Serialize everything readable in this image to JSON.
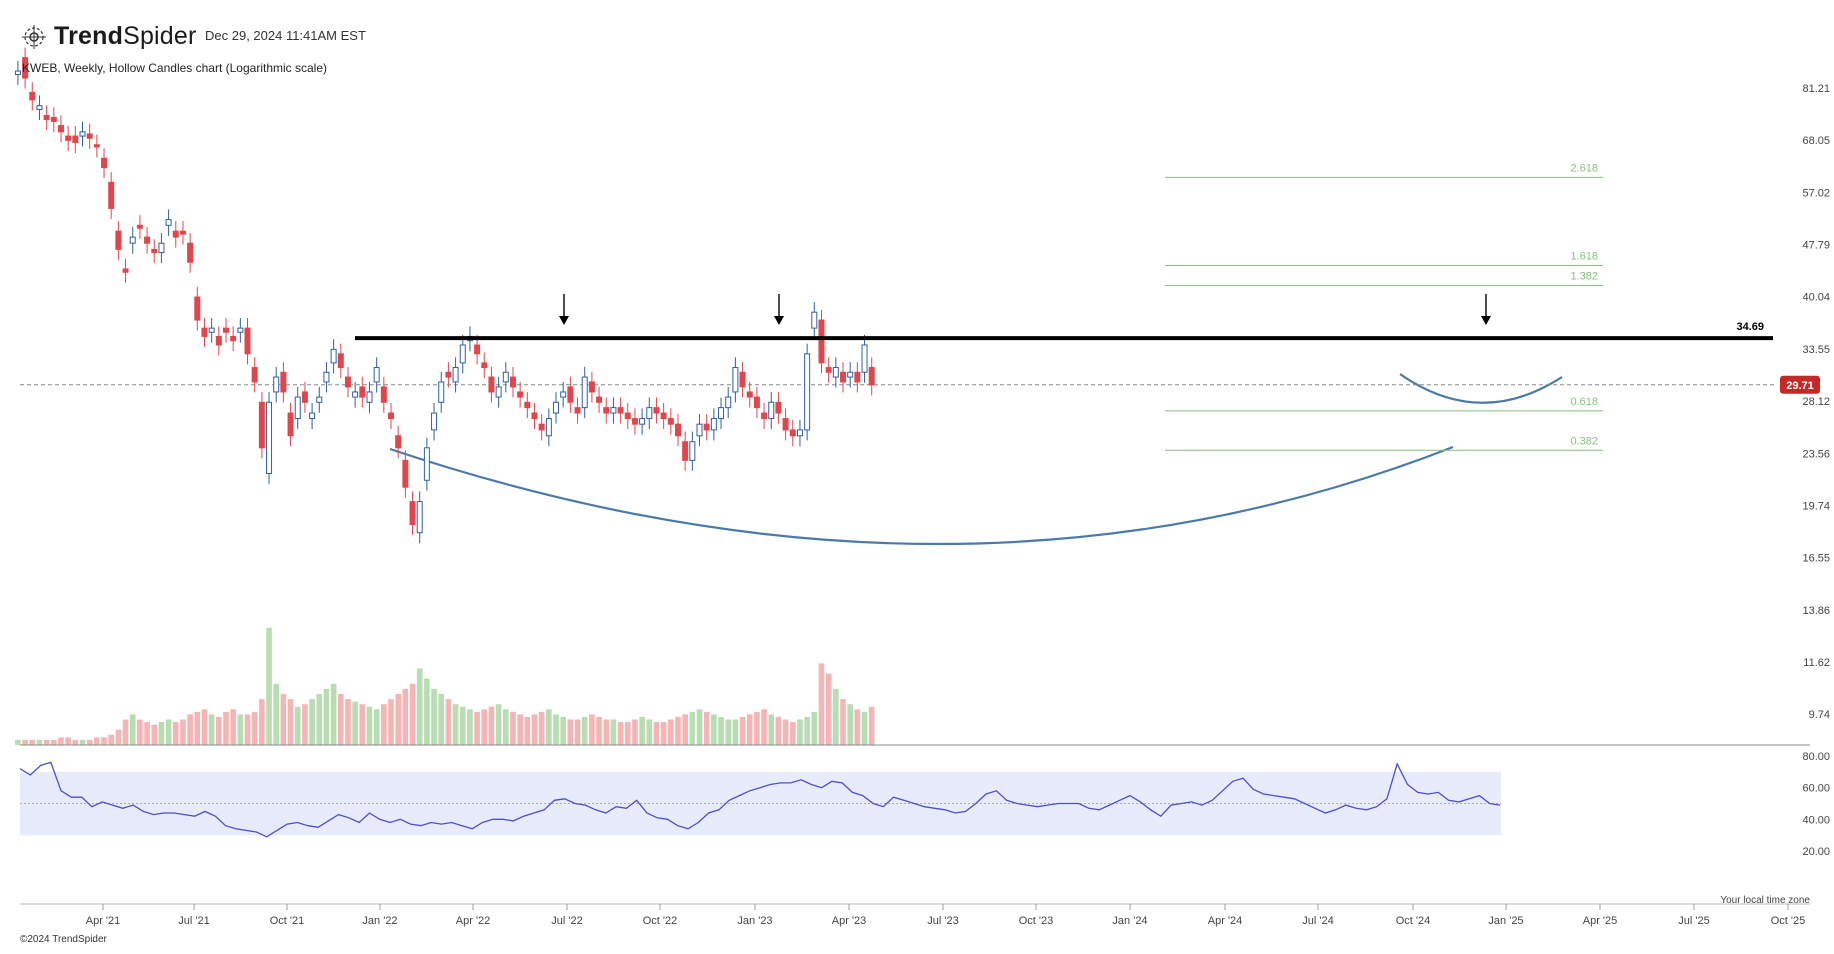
{
  "header": {
    "brand_prefix": "Trend",
    "brand_suffix": "Spider",
    "datetime": "Dec 29, 2024 11:41AM EST",
    "subtitle": "KWEB, Weekly, Hollow Candles chart (Logarithmic scale)",
    "copyright": "©2024 TrendSpider",
    "timezone_note": "Your local time zone"
  },
  "colors": {
    "up": "#2f5fa6",
    "down": "#e0474c",
    "vol_up": "#b9ddb2",
    "vol_down": "#f6b5b5",
    "fib": "#86c17e",
    "arc": "#4a7aaa",
    "rsi_line": "#4b4fd0",
    "rsi_band": "#e8ebfb",
    "price_tag": "#c62828"
  },
  "chart_data": [
    {
      "type": "candlestick",
      "title": "KWEB, Weekly, Hollow Candles chart (Logarithmic scale)",
      "yscale": "log",
      "y_ticks": [
        "81.21",
        "68.05",
        "57.02",
        "47.79",
        "40.04",
        "33.55",
        "28.12",
        "23.56",
        "19.74",
        "16.55",
        "13.86",
        "11.62",
        "9.74"
      ],
      "x_ticks": [
        "Apr '21",
        "Jul '21",
        "Oct '21",
        "Jan '22",
        "Apr '22",
        "Jul '22",
        "Oct '22",
        "Jan '23",
        "Apr '23",
        "Jul '23",
        "Oct '23",
        "Jan '24",
        "Apr '24",
        "Jul '24",
        "Oct '24",
        "Jan '25",
        "Apr '25",
        "Jul '25",
        "Oct '25"
      ],
      "x_start": "2021-01-08",
      "series_close": [
        [
          85.0,
          86.0
        ],
        [
          90.0,
          84.0
        ],
        [
          80.0,
          78.0
        ],
        [
          75.5,
          76.5
        ],
        [
          74.0,
          73.0
        ],
        [
          73.5,
          72.5
        ],
        [
          71.5,
          70.0
        ],
        [
          69.0,
          68.0
        ],
        [
          69.0,
          67.5
        ],
        [
          69.0,
          70.0
        ],
        [
          69.5,
          68.5
        ],
        [
          67.0,
          66.5
        ],
        [
          64.0,
          62.0
        ],
        [
          59.0,
          54.0
        ],
        [
          50.0,
          47.0
        ],
        [
          44.0,
          43.5
        ],
        [
          48.0,
          49.0
        ],
        [
          51.0,
          50.5
        ],
        [
          49.0,
          48.0
        ],
        [
          47.0,
          46.5
        ],
        [
          46.5,
          48.0
        ],
        [
          51.0,
          52.0
        ],
        [
          50.0,
          49.0
        ],
        [
          50.0,
          49.5
        ],
        [
          48.0,
          45.0
        ],
        [
          40.0,
          37.0
        ],
        [
          36.0,
          35.0
        ],
        [
          35.5,
          36.0
        ],
        [
          35.0,
          34.0
        ],
        [
          36.0,
          35.5
        ],
        [
          35.0,
          34.5
        ],
        [
          35.5,
          36.0
        ],
        [
          36.0,
          33.0
        ],
        [
          31.5,
          30.0
        ],
        [
          28.0,
          24.0
        ],
        [
          22.0,
          28.0
        ],
        [
          29.0,
          30.5
        ],
        [
          31.0,
          29.0
        ],
        [
          27.0,
          25.0
        ],
        [
          26.5,
          28.5
        ],
        [
          29.0,
          28.0
        ],
        [
          26.5,
          27.0
        ],
        [
          28.0,
          28.5
        ],
        [
          30.0,
          31.0
        ],
        [
          32.0,
          33.5
        ],
        [
          33.0,
          31.5
        ],
        [
          30.5,
          29.5
        ],
        [
          28.5,
          29.0
        ],
        [
          29.5,
          28.5
        ],
        [
          28.0,
          29.0
        ],
        [
          30.0,
          31.5
        ],
        [
          29.5,
          28.0
        ],
        [
          27.0,
          26.5
        ],
        [
          25.0,
          24.0
        ],
        [
          23.0,
          21.0
        ],
        [
          20.0,
          18.5
        ],
        [
          18.0,
          20.0
        ],
        [
          21.5,
          24.0
        ],
        [
          25.5,
          27.0
        ],
        [
          28.0,
          30.0
        ],
        [
          31.0,
          30.5
        ],
        [
          30.0,
          31.5
        ],
        [
          32.0,
          34.0
        ],
        [
          34.5,
          35.0
        ],
        [
          34.0,
          33.0
        ],
        [
          32.0,
          31.5
        ],
        [
          30.5,
          29.0
        ],
        [
          28.5,
          29.5
        ],
        [
          30.0,
          31.0
        ],
        [
          30.5,
          29.5
        ],
        [
          29.0,
          28.5
        ],
        [
          28.0,
          27.5
        ],
        [
          27.0,
          26.5
        ],
        [
          26.0,
          25.5
        ],
        [
          25.0,
          26.5
        ],
        [
          27.0,
          28.0
        ],
        [
          28.5,
          29.0
        ],
        [
          29.5,
          28.0
        ],
        [
          27.5,
          27.0
        ],
        [
          27.5,
          30.5
        ],
        [
          30.0,
          29.0
        ],
        [
          28.5,
          28.0
        ],
        [
          27.5,
          27.0
        ],
        [
          27.0,
          27.5
        ],
        [
          27.5,
          27.0
        ],
        [
          27.0,
          26.5
        ],
        [
          26.5,
          26.0
        ],
        [
          26.0,
          26.5
        ],
        [
          26.5,
          27.5
        ],
        [
          27.5,
          27.0
        ],
        [
          27.0,
          26.5
        ],
        [
          26.5,
          26.0
        ],
        [
          26.0,
          25.0
        ],
        [
          24.5,
          23.0
        ],
        [
          23.0,
          24.5
        ],
        [
          25.0,
          26.0
        ],
        [
          26.0,
          25.5
        ],
        [
          25.5,
          26.5
        ],
        [
          26.5,
          27.5
        ],
        [
          27.5,
          28.5
        ],
        [
          29.0,
          31.5
        ],
        [
          31.0,
          29.5
        ],
        [
          29.0,
          28.5
        ],
        [
          28.5,
          27.5
        ],
        [
          27.0,
          26.5
        ],
        [
          26.5,
          28.0
        ],
        [
          28.0,
          27.0
        ],
        [
          26.5,
          25.5
        ],
        [
          25.5,
          25.0
        ],
        [
          25.0,
          25.5
        ],
        [
          25.5,
          33.0
        ],
        [
          36.0,
          38.0
        ],
        [
          37.0,
          32.0
        ],
        [
          31.5,
          31.0
        ],
        [
          30.5,
          31.5
        ],
        [
          31.0,
          30.0
        ],
        [
          30.5,
          31.0
        ],
        [
          31.0,
          30.0
        ],
        [
          31.0,
          34.0
        ],
        [
          31.5,
          29.7
        ]
      ],
      "rsi": [
        72,
        68,
        74,
        76,
        58,
        54,
        54,
        48,
        51,
        49,
        47,
        49,
        45,
        43,
        44,
        44,
        43,
        42,
        45,
        42,
        36,
        34,
        33,
        32,
        29,
        33,
        37,
        38,
        36,
        35,
        39,
        43,
        41,
        38,
        44,
        40,
        38,
        40,
        37,
        36,
        38,
        37,
        38,
        36,
        34,
        38,
        40,
        40,
        39,
        42,
        44,
        46,
        52,
        53,
        50,
        49,
        46,
        44,
        48,
        47,
        52,
        44,
        41,
        40,
        36,
        34,
        38,
        44,
        46,
        52,
        55,
        58,
        60,
        62,
        63,
        63,
        65,
        62,
        60,
        64,
        63,
        57,
        55,
        50,
        48,
        54,
        52,
        50,
        48,
        47,
        46,
        44,
        45,
        50,
        56,
        58,
        52,
        50,
        49,
        48,
        49,
        50,
        50,
        50,
        47,
        46,
        49,
        52,
        55,
        51,
        46,
        42,
        49,
        50,
        51,
        49,
        52,
        58,
        64,
        66,
        59,
        56,
        55,
        54,
        53,
        50,
        47,
        44,
        46,
        49,
        47,
        46,
        48,
        53,
        75,
        62,
        57,
        56,
        57,
        52,
        51,
        53,
        55,
        50,
        49
      ],
      "volume": [
        2,
        2,
        2,
        2,
        2,
        2,
        3,
        3,
        2,
        2,
        2,
        3,
        3,
        4,
        6,
        10,
        12,
        10,
        9,
        8,
        9,
        10,
        9,
        10,
        12,
        13,
        14,
        12,
        11,
        13,
        14,
        12,
        12,
        13,
        18,
        46,
        24,
        20,
        18,
        15,
        16,
        18,
        20,
        22,
        24,
        20,
        18,
        17,
        16,
        15,
        14,
        16,
        18,
        20,
        22,
        24,
        30,
        26,
        22,
        20,
        18,
        16,
        15,
        14,
        13,
        14,
        15,
        16,
        14,
        13,
        12,
        11,
        12,
        13,
        14,
        12,
        11,
        10,
        10,
        11,
        12,
        11,
        10,
        10,
        9,
        9,
        10,
        11,
        10,
        9,
        9,
        10,
        11,
        12,
        13,
        14,
        13,
        12,
        11,
        10,
        10,
        11,
        12,
        13,
        14,
        12,
        11,
        10,
        9,
        10,
        11,
        13,
        32,
        28,
        22,
        18,
        16,
        14,
        13,
        15
      ],
      "horizontal_line": {
        "value": 34.69,
        "label": "34.69"
      },
      "current_price": {
        "value": 29.71,
        "label": "29.71"
      },
      "fib_levels": [
        {
          "label": "2.618",
          "value": 60.0
        },
        {
          "label": "1.618",
          "value": 44.5
        },
        {
          "label": "1.382",
          "value": 41.6
        },
        {
          "label": "0.618",
          "value": 27.2
        },
        {
          "label": "0.382",
          "value": 23.8
        }
      ],
      "arrows": [
        "Jul '22",
        "Jan '23",
        "Dec '24"
      ],
      "rsi_ticks": [
        "80.00",
        "60.00",
        "40.00",
        "20.00"
      ],
      "rsi_band": [
        30,
        70
      ],
      "legend": "none",
      "grid": false
    }
  ]
}
